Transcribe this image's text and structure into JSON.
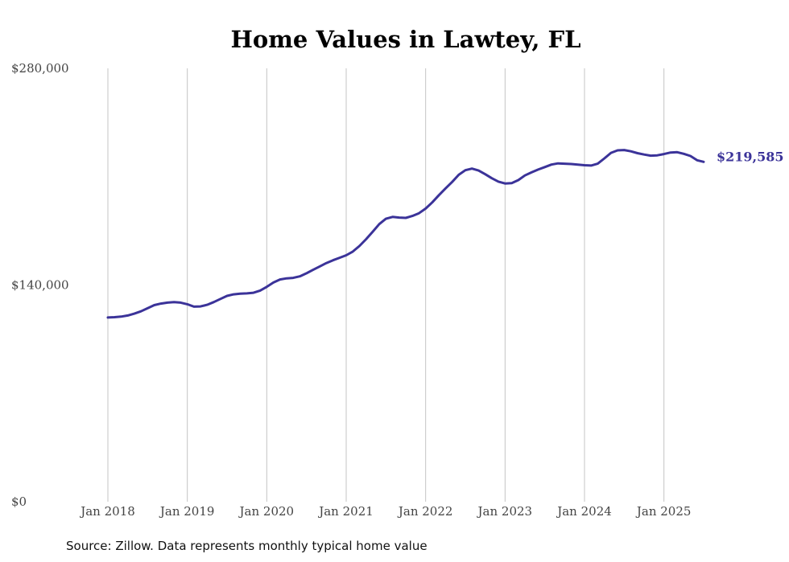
{
  "colors": {
    "line": "#3b3399",
    "gridline": "#c4c4c4"
  },
  "chart_data": {
    "type": "line",
    "title": "Home Values in Lawtey, FL",
    "xlabel": "",
    "ylabel": "",
    "ylim": [
      0,
      280000
    ],
    "yticks": [
      0,
      140000,
      280000
    ],
    "ytick_labels": [
      "$0",
      "$140,000",
      "$280,000"
    ],
    "xlim": [
      "2018-01",
      "2025-07"
    ],
    "xticks": [
      "2018-01",
      "2019-01",
      "2020-01",
      "2021-01",
      "2022-01",
      "2023-01",
      "2024-01",
      "2025-01"
    ],
    "xtick_labels": [
      "Jan 2018",
      "Jan 2019",
      "Jan 2020",
      "Jan 2021",
      "Jan 2022",
      "Jan 2023",
      "Jan 2024",
      "Jan 2025"
    ],
    "grid": {
      "vertical": true,
      "horizontal": false
    },
    "end_label": "$219,585",
    "source": "Source: Zillow. Data represents monthly typical home value",
    "series": [
      {
        "color": "#3b3399",
        "points": [
          [
            "2018-01",
            119000
          ],
          [
            "2018-02",
            119200
          ],
          [
            "2018-03",
            119600
          ],
          [
            "2018-04",
            120300
          ],
          [
            "2018-05",
            121500
          ],
          [
            "2018-06",
            123000
          ],
          [
            "2018-07",
            125000
          ],
          [
            "2018-08",
            127000
          ],
          [
            "2018-09",
            128000
          ],
          [
            "2018-10",
            128600
          ],
          [
            "2018-11",
            129000
          ],
          [
            "2018-12",
            128600
          ],
          [
            "2019-01",
            127600
          ],
          [
            "2019-02",
            126000
          ],
          [
            "2019-03",
            126200
          ],
          [
            "2019-04",
            127200
          ],
          [
            "2019-05",
            129000
          ],
          [
            "2019-06",
            131000
          ],
          [
            "2019-07",
            133000
          ],
          [
            "2019-08",
            134000
          ],
          [
            "2019-09",
            134400
          ],
          [
            "2019-10",
            134600
          ],
          [
            "2019-11",
            135000
          ],
          [
            "2019-12",
            136400
          ],
          [
            "2020-01",
            138800
          ],
          [
            "2020-02",
            141600
          ],
          [
            "2020-03",
            143600
          ],
          [
            "2020-04",
            144300
          ],
          [
            "2020-05",
            144600
          ],
          [
            "2020-06",
            145600
          ],
          [
            "2020-07",
            147600
          ],
          [
            "2020-08",
            149800
          ],
          [
            "2020-09",
            152000
          ],
          [
            "2020-10",
            154200
          ],
          [
            "2020-11",
            156000
          ],
          [
            "2020-12",
            157600
          ],
          [
            "2021-01",
            159200
          ],
          [
            "2021-02",
            161600
          ],
          [
            "2021-03",
            165200
          ],
          [
            "2021-04",
            169600
          ],
          [
            "2021-05",
            174400
          ],
          [
            "2021-06",
            179400
          ],
          [
            "2021-07",
            182800
          ],
          [
            "2021-08",
            184000
          ],
          [
            "2021-09",
            183600
          ],
          [
            "2021-10",
            183400
          ],
          [
            "2021-11",
            184600
          ],
          [
            "2021-12",
            186400
          ],
          [
            "2022-01",
            189400
          ],
          [
            "2022-02",
            193400
          ],
          [
            "2022-03",
            198000
          ],
          [
            "2022-04",
            202400
          ],
          [
            "2022-05",
            206600
          ],
          [
            "2022-06",
            211200
          ],
          [
            "2022-07",
            214200
          ],
          [
            "2022-08",
            215200
          ],
          [
            "2022-09",
            214000
          ],
          [
            "2022-10",
            211600
          ],
          [
            "2022-11",
            209000
          ],
          [
            "2022-12",
            206800
          ],
          [
            "2023-01",
            205600
          ],
          [
            "2023-02",
            205800
          ],
          [
            "2023-03",
            207800
          ],
          [
            "2023-04",
            210800
          ],
          [
            "2023-05",
            212800
          ],
          [
            "2023-06",
            214600
          ],
          [
            "2023-07",
            216200
          ],
          [
            "2023-08",
            217800
          ],
          [
            "2023-09",
            218600
          ],
          [
            "2023-10",
            218400
          ],
          [
            "2023-11",
            218200
          ],
          [
            "2023-12",
            217800
          ],
          [
            "2024-01",
            217400
          ],
          [
            "2024-02",
            217200
          ],
          [
            "2024-03",
            218400
          ],
          [
            "2024-04",
            221800
          ],
          [
            "2024-05",
            225400
          ],
          [
            "2024-06",
            227000
          ],
          [
            "2024-07",
            227200
          ],
          [
            "2024-08",
            226400
          ],
          [
            "2024-09",
            225200
          ],
          [
            "2024-10",
            224300
          ],
          [
            "2024-11",
            223600
          ],
          [
            "2024-12",
            223800
          ],
          [
            "2025-01",
            224600
          ],
          [
            "2025-02",
            225600
          ],
          [
            "2025-03",
            225800
          ],
          [
            "2025-04",
            224800
          ],
          [
            "2025-05",
            223400
          ],
          [
            "2025-06",
            220600
          ],
          [
            "2025-07",
            219585
          ]
        ]
      }
    ]
  }
}
